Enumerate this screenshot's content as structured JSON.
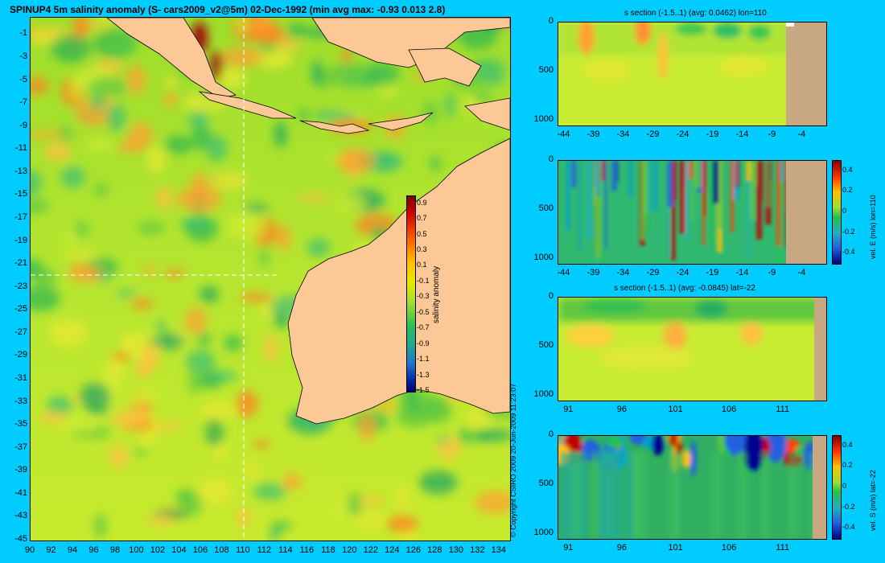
{
  "chart_data": [
    {
      "type": "heatmap",
      "title": "SPINUP4 5m salinity anomaly  (S- cars2009_v2@5m) 02-Dec-1992  (min avg max: -0.93 0.013 2.8)",
      "x_ticks": [
        "90",
        "92",
        "94",
        "96",
        "98",
        "100",
        "102",
        "104",
        "106",
        "108",
        "110",
        "112",
        "114",
        "116",
        "118",
        "120",
        "122",
        "124",
        "126",
        "128",
        "130",
        "132",
        "134"
      ],
      "y_ticks": [
        "-1",
        "-3",
        "-5",
        "-7",
        "-9",
        "-11",
        "-13",
        "-15",
        "-17",
        "-19",
        "-21",
        "-23",
        "-25",
        "-27",
        "-29",
        "-31",
        "-33",
        "-35",
        "-37",
        "-39",
        "-41",
        "-43",
        "-45"
      ],
      "xlim": [
        90,
        135
      ],
      "ylim": [
        -45,
        0.5
      ],
      "crosshair": {
        "lon": 110,
        "lat": -22
      },
      "colorbar": {
        "label": "salinity anomaly",
        "ticks": [
          "0.9",
          "0.7",
          "0.5",
          "0.3",
          "0.1",
          "-0.1",
          "-0.3",
          "-0.5",
          "-0.7",
          "-0.9",
          "-1.1",
          "-1.3",
          "-1.5"
        ],
        "range": [
          -1.5,
          1.0
        ]
      }
    },
    {
      "type": "heatmap",
      "title": "s section (-1.5..1) (avg: 0.0462) lon=110",
      "x_ticks": [
        "-44",
        "-39",
        "-34",
        "-29",
        "-24",
        "-19",
        "-14",
        "-9",
        "-4"
      ],
      "y_ticks": [
        "0",
        "500",
        "1000"
      ],
      "xlim": [
        -45,
        0
      ],
      "ylim": [
        1050,
        0
      ]
    },
    {
      "type": "heatmap",
      "title": "",
      "x_ticks": [
        "-44",
        "-39",
        "-34",
        "-29",
        "-24",
        "-19",
        "-14",
        "-9",
        "-4"
      ],
      "y_ticks": [
        "0",
        "500",
        "1000"
      ],
      "xlim": [
        -45,
        0
      ],
      "ylim": [
        1050,
        0
      ],
      "colorbar": {
        "label": "vel. E (m/s) lon=110",
        "ticks": [
          "0.4",
          "0.2",
          "0",
          "-0.2",
          "-0.4"
        ],
        "range": [
          -0.5,
          0.5
        ]
      }
    },
    {
      "type": "heatmap",
      "title": "s section (-1.5..1) (avg: -0.0845) lat=-22",
      "x_ticks": [
        "91",
        "96",
        "101",
        "106",
        "111"
      ],
      "y_ticks": [
        "0",
        "500",
        "1000"
      ],
      "xlim": [
        90,
        115
      ],
      "ylim": [
        1050,
        0
      ]
    },
    {
      "type": "heatmap",
      "title": "",
      "x_ticks": [
        "91",
        "96",
        "101",
        "106",
        "111"
      ],
      "y_ticks": [
        "0",
        "500",
        "1000"
      ],
      "xlim": [
        90,
        115
      ],
      "ylim": [
        1050,
        0
      ],
      "colorbar": {
        "label": "vel. S (m/s) lat=-22",
        "ticks": [
          "0.4",
          "0.2",
          "0",
          "-0.2",
          "-0.4"
        ],
        "range": [
          -0.5,
          0.5
        ]
      }
    }
  ],
  "copyright": "© Copyright CSIRO 2009   20-Jun-2009 11:23:07",
  "colors": {
    "background": "#00ccff",
    "land": "#fcc896",
    "section_land": "#c8a882",
    "ocean_base": "#b4e628"
  }
}
